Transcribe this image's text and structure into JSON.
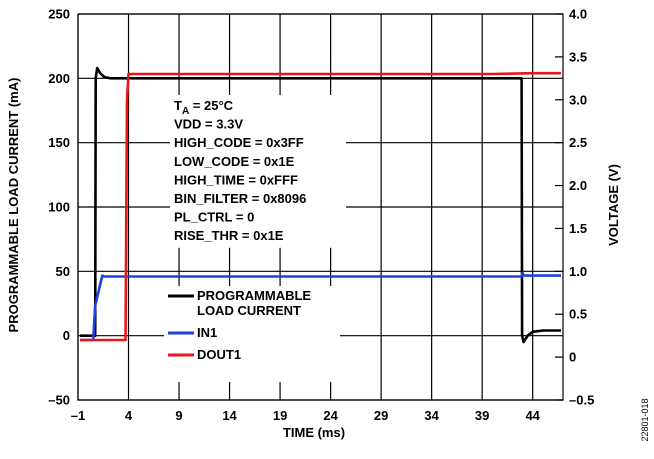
{
  "chart_data": {
    "type": "line",
    "xlabel": "TIME (ms)",
    "ylabel_left": "PROGRAMMABLE LOAD CURRENT (mA)",
    "ylabel_right": "VOLTAGE (V)",
    "xlim": [
      -1,
      47
    ],
    "ylim_left": [
      -50,
      250
    ],
    "ylim_right": [
      -0.5,
      4.0
    ],
    "x_ticks": [
      -1,
      4,
      9,
      14,
      19,
      24,
      29,
      34,
      39,
      44
    ],
    "x_tick_labels": [
      "–1",
      "4",
      "9",
      "14",
      "19",
      "24",
      "29",
      "34",
      "39",
      "44"
    ],
    "y_left_ticks": [
      -50,
      0,
      50,
      100,
      150,
      200,
      250
    ],
    "y_left_tick_labels": [
      "–50",
      "0",
      "50",
      "100",
      "150",
      "200",
      "250"
    ],
    "y_right_ticks": [
      -0.5,
      0,
      0.5,
      1.0,
      1.5,
      2.0,
      2.5,
      3.0,
      3.5,
      4.0
    ],
    "y_right_tick_labels": [
      "–0.5",
      "0",
      "0.5",
      "1.0",
      "1.5",
      "2.0",
      "2.5",
      "3.0",
      "3.5",
      "4.0"
    ],
    "grid": true,
    "legend_position": "bottom-left",
    "series": [
      {
        "name": "PROGRAMMABLE LOAD CURRENT",
        "label_lines": [
          "PROGRAMMABLE",
          "LOAD CURRENT"
        ],
        "axis": "left",
        "color": "#000000",
        "x": [
          -0.8,
          0.7,
          0.75,
          0.9,
          1.2,
          1.6,
          2.2,
          3.5,
          10,
          20,
          30,
          40,
          42.9,
          42.95,
          43.1,
          43.5,
          44,
          45,
          46.8
        ],
        "y": [
          0,
          0,
          200,
          208,
          204,
          201,
          200,
          200,
          200,
          200,
          200,
          200,
          200,
          0,
          -5,
          0,
          3,
          4,
          4
        ]
      },
      {
        "name": "IN1",
        "axis": "right",
        "color": "#1f3fe0",
        "x": [
          -0.8,
          0.5,
          0.7,
          1.4,
          1.6,
          10,
          20,
          30,
          40,
          42.9,
          43.0,
          43.1,
          46.8
        ],
        "y": [
          0.2,
          0.2,
          0.6,
          0.95,
          0.94,
          0.94,
          0.94,
          0.94,
          0.94,
          0.94,
          0.98,
          0.95,
          0.95
        ]
      },
      {
        "name": "DOUT1",
        "axis": "right",
        "color": "#e8151b",
        "x": [
          -0.8,
          3.7,
          3.85,
          4.0,
          10,
          20,
          30,
          40,
          44,
          46.8
        ],
        "y": [
          0.2,
          0.2,
          3.0,
          3.3,
          3.3,
          3.3,
          3.3,
          3.3,
          3.31,
          3.31
        ]
      }
    ],
    "annotations": [
      {
        "text": "T",
        "sub": "A",
        "rest": " = 25°C"
      },
      {
        "text": "VDD = 3.3V"
      },
      {
        "text": "HIGH_CODE = 0x3FF"
      },
      {
        "text": "LOW_CODE = 0x1E"
      },
      {
        "text": "HIGH_TIME = 0xFFF"
      },
      {
        "text": "BIN_FILTER = 0x8096"
      },
      {
        "text": "PL_CTRL = 0"
      },
      {
        "text": "RISE_THR = 0x1E"
      }
    ],
    "figure_id": "22801-018"
  }
}
